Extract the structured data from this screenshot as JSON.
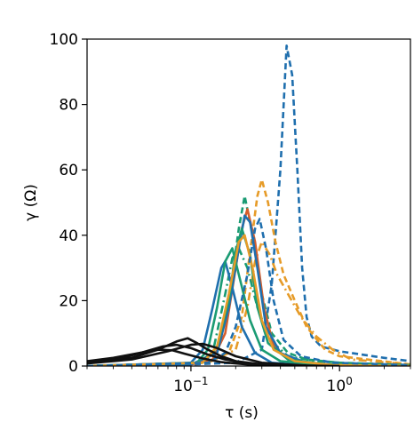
{
  "chart_data": {
    "type": "line",
    "xlabel": "τ (s)",
    "ylabel": "γ (Ω)",
    "xscale": "log",
    "xlim": [
      0.02,
      3.0
    ],
    "ylim": [
      0,
      100
    ],
    "grid": false,
    "legend": "none",
    "x_ticks": [
      {
        "value": 0.1,
        "base": "10",
        "exp": "−1"
      },
      {
        "value": 1.0,
        "base": "10",
        "exp": "0"
      }
    ],
    "y_ticks": [
      {
        "value": 0,
        "label": "0"
      },
      {
        "value": 20,
        "label": "20"
      },
      {
        "value": 40,
        "label": "40"
      },
      {
        "value": 60,
        "label": "60"
      },
      {
        "value": 80,
        "label": "80"
      },
      {
        "value": 100,
        "label": "100"
      }
    ],
    "colors": {
      "blue": "#1f6fae",
      "orange": "#e69b28",
      "green": "#1a9b73",
      "red": "#d55e2b",
      "black": "#111111"
    },
    "series": [
      {
        "color": "blue",
        "dash": "dashed",
        "x": [
          0.02,
          0.1,
          0.2,
          0.3,
          0.35,
          0.4,
          0.44,
          0.48,
          0.52,
          0.56,
          0.6,
          0.65,
          0.75,
          1.0,
          2.0,
          3.0
        ],
        "y": [
          0,
          0.5,
          1,
          5,
          25,
          60,
          98,
          89,
          60,
          30,
          15,
          9,
          6,
          4.5,
          2.5,
          1.5
        ]
      },
      {
        "color": "orange",
        "dash": "dashed",
        "x": [
          0.02,
          0.12,
          0.18,
          0.22,
          0.25,
          0.28,
          0.3,
          0.33,
          0.37,
          0.42,
          0.5,
          0.6,
          0.8,
          1.0,
          3.0
        ],
        "y": [
          0,
          1,
          4,
          15,
          35,
          52,
          57,
          50,
          38,
          28,
          20,
          12,
          5,
          3,
          0.5
        ]
      },
      {
        "color": "orange",
        "dash": "dashdot",
        "x": [
          0.02,
          0.13,
          0.2,
          0.24,
          0.27,
          0.3,
          0.34,
          0.38,
          0.45,
          0.55,
          0.7,
          0.9,
          1.2,
          3.0
        ],
        "y": [
          0,
          1,
          5,
          18,
          32,
          38,
          34,
          28,
          22,
          15,
          9,
          5,
          2,
          0.5
        ]
      },
      {
        "color": "green",
        "dash": "dashed",
        "x": [
          0.02,
          0.12,
          0.15,
          0.18,
          0.21,
          0.23,
          0.26,
          0.3,
          0.35,
          0.45,
          0.6,
          1.0,
          3.0
        ],
        "y": [
          0,
          1,
          5,
          20,
          42,
          52,
          40,
          22,
          10,
          4,
          2,
          1,
          0.3
        ]
      },
      {
        "color": "green",
        "dash": "dashdot",
        "x": [
          0.02,
          0.11,
          0.14,
          0.17,
          0.19,
          0.21,
          0.24,
          0.28,
          0.34,
          0.45,
          0.7,
          1.5,
          3.0
        ],
        "y": [
          0,
          1,
          4,
          22,
          33,
          36,
          30,
          18,
          8,
          3,
          1.5,
          0.5,
          0.2
        ]
      },
      {
        "color": "red",
        "dash": "solid",
        "x": [
          0.02,
          0.1,
          0.14,
          0.17,
          0.2,
          0.22,
          0.24,
          0.27,
          0.31,
          0.36,
          0.45,
          0.7,
          3.0
        ],
        "y": [
          0,
          0.5,
          2,
          10,
          30,
          42,
          48,
          38,
          18,
          6,
          2,
          0.5,
          0
        ]
      },
      {
        "color": "blue",
        "dash": "solid",
        "x": [
          0.02,
          0.1,
          0.15,
          0.18,
          0.21,
          0.23,
          0.25,
          0.28,
          0.32,
          0.4,
          0.6,
          1.0,
          3.0
        ],
        "y": [
          0,
          0.5,
          4,
          18,
          36,
          46,
          44,
          30,
          12,
          4,
          1,
          0.3,
          0
        ]
      },
      {
        "color": "blue",
        "dash": "solid",
        "x": [
          0.02,
          0.1,
          0.12,
          0.14,
          0.16,
          0.17,
          0.19,
          0.22,
          0.27,
          0.35,
          0.6,
          3.0
        ],
        "y": [
          0,
          1,
          5,
          18,
          30,
          32,
          24,
          12,
          4,
          1,
          0.2,
          0
        ]
      },
      {
        "color": "green",
        "dash": "solid",
        "x": [
          0.02,
          0.11,
          0.13,
          0.15,
          0.17,
          0.19,
          0.21,
          0.25,
          0.3,
          0.4,
          0.7,
          3.0
        ],
        "y": [
          0,
          1,
          5,
          18,
          32,
          36,
          28,
          14,
          5,
          1.5,
          0.5,
          0
        ]
      },
      {
        "color": "green",
        "dash": "solid",
        "x": [
          0.02,
          0.12,
          0.15,
          0.18,
          0.2,
          0.22,
          0.25,
          0.28,
          0.33,
          0.45,
          0.8,
          3.0
        ],
        "y": [
          0,
          1,
          6,
          20,
          35,
          42,
          34,
          18,
          7,
          2,
          0.5,
          0
        ]
      },
      {
        "color": "orange",
        "dash": "solid",
        "x": [
          0.02,
          0.12,
          0.15,
          0.18,
          0.21,
          0.23,
          0.26,
          0.3,
          0.36,
          0.5,
          0.9,
          3.0
        ],
        "y": [
          0,
          1,
          6,
          22,
          38,
          40,
          30,
          14,
          5,
          1.5,
          0.3,
          0
        ]
      },
      {
        "color": "blue",
        "dash": "dashed",
        "x": [
          0.02,
          0.13,
          0.17,
          0.2,
          0.24,
          0.27,
          0.29,
          0.32,
          0.36,
          0.42,
          0.55,
          0.9,
          3.0
        ],
        "y": [
          0,
          1,
          4,
          12,
          28,
          42,
          45,
          36,
          20,
          8,
          3,
          1,
          0.3
        ]
      },
      {
        "color": "black",
        "dash": "solid",
        "x": [
          0.02,
          0.04,
          0.06,
          0.08,
          0.095,
          0.11,
          0.13,
          0.16,
          0.2,
          0.3,
          0.5,
          1.0
        ],
        "y": [
          1,
          2.5,
          5,
          7.5,
          8.5,
          7,
          5,
          3,
          1.5,
          0.5,
          0.2,
          0
        ]
      },
      {
        "color": "black",
        "dash": "solid",
        "x": [
          0.02,
          0.035,
          0.05,
          0.065,
          0.08,
          0.1,
          0.13,
          0.17,
          0.25,
          0.5
        ],
        "y": [
          1,
          2.5,
          4.5,
          6,
          6.5,
          5.5,
          3.5,
          2,
          0.7,
          0
        ]
      },
      {
        "color": "black",
        "dash": "solid",
        "x": [
          0.02,
          0.03,
          0.045,
          0.06,
          0.075,
          0.09,
          0.12,
          0.16,
          0.25,
          0.5
        ],
        "y": [
          1.5,
          2.5,
          4,
          5,
          4.8,
          3.8,
          2.3,
          1.2,
          0.4,
          0
        ]
      },
      {
        "color": "black",
        "dash": "solid",
        "x": [
          0.02,
          0.04,
          0.07,
          0.1,
          0.12,
          0.15,
          0.2,
          0.3,
          0.6
        ],
        "y": [
          0.8,
          2,
          4.5,
          6.5,
          6.8,
          5.5,
          3,
          1,
          0.1
        ]
      }
    ]
  }
}
